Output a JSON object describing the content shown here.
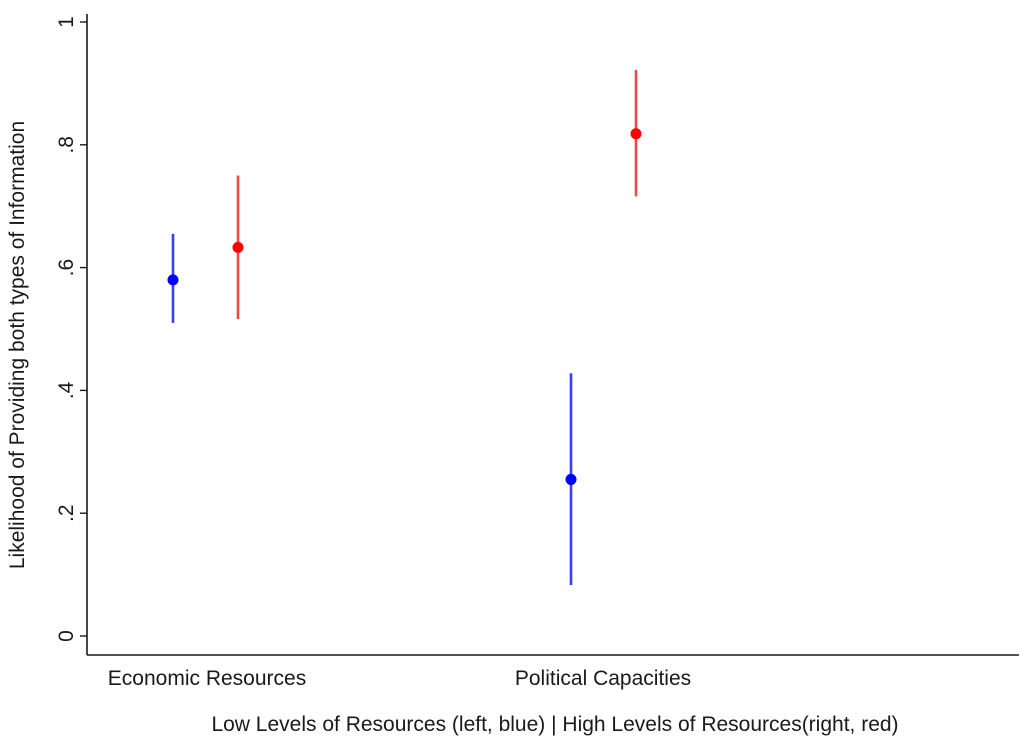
{
  "chart_data": {
    "type": "scatter",
    "title": "",
    "xlabel": "Low Levels of Resources (left, blue) | High Levels of Resources(right, red)",
    "ylabel": "Likelihood of Providing both types of Information",
    "categories": [
      "Economic Resources",
      "Political Capacities"
    ],
    "ylim": [
      0,
      1
    ],
    "yticks": [
      0,
      0.2,
      0.4,
      0.6,
      0.8,
      1
    ],
    "ytick_labels": [
      "0",
      ".2",
      ".4",
      ".6",
      ".8",
      "1"
    ],
    "grid": false,
    "legend": "none",
    "series": [
      {
        "color": "#0000ff",
        "ci_color": "#3b3bff",
        "points": [
          {
            "category": "Economic Resources",
            "y": 0.58,
            "lower": 0.51,
            "upper": 0.655
          },
          {
            "category": "Political Capacities",
            "y": 0.255,
            "lower": 0.083,
            "upper": 0.428
          }
        ]
      },
      {
        "color": "#ff0000",
        "ci_color": "#ef4a4a",
        "points": [
          {
            "category": "Economic Resources",
            "y": 0.633,
            "lower": 0.516,
            "upper": 0.75
          },
          {
            "category": "Political Capacities",
            "y": 0.818,
            "lower": 0.716,
            "upper": 0.922
          }
        ]
      }
    ]
  }
}
